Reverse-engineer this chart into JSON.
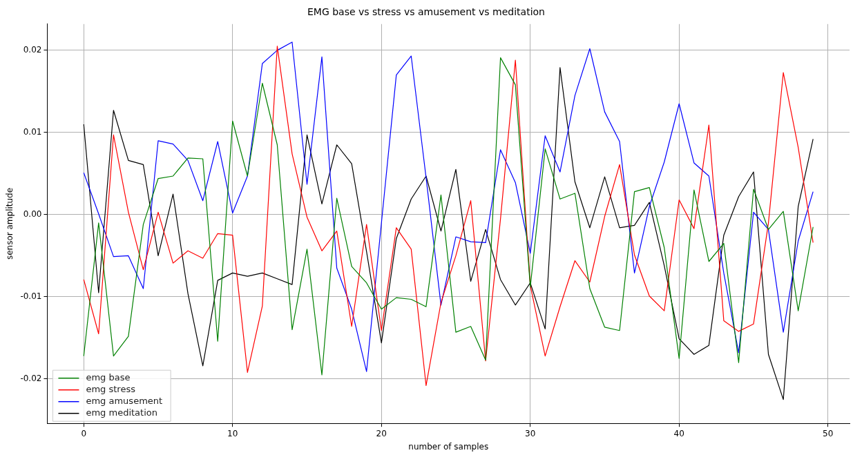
{
  "chart_data": {
    "type": "line",
    "title": "EMG base vs stress vs amusement vs meditation",
    "xlabel": "number of samples",
    "ylabel": "sensor amplitude",
    "x": [
      0,
      1,
      2,
      3,
      4,
      5,
      6,
      7,
      8,
      9,
      10,
      11,
      12,
      13,
      14,
      15,
      16,
      17,
      18,
      19,
      20,
      21,
      22,
      23,
      24,
      25,
      26,
      27,
      28,
      29,
      30,
      31,
      32,
      33,
      34,
      35,
      36,
      37,
      38,
      39,
      40,
      41,
      42,
      43,
      44,
      45,
      46,
      47,
      48,
      49
    ],
    "series": [
      {
        "name": "emg base",
        "color": "#008000",
        "values": [
          -0.0172,
          -0.001,
          -0.0172,
          -0.0148,
          -0.0012,
          0.0044,
          0.0047,
          0.0069,
          0.0068,
          -0.0154,
          0.0114,
          0.0047,
          0.016,
          0.0085,
          -0.014,
          -0.0042,
          -0.0195,
          0.002,
          -0.0063,
          -0.0083,
          -0.0115,
          -0.0101,
          -0.0103,
          -0.0112,
          0.0024,
          -0.0143,
          -0.0136,
          -0.0177,
          0.0191,
          0.0158,
          -0.0088,
          0.008,
          0.0019,
          0.0026,
          -0.009,
          -0.0137,
          -0.0141,
          0.0028,
          0.0033,
          -0.004,
          -0.0175,
          0.003,
          -0.0057,
          -0.0035,
          -0.018,
          0.0031,
          -0.0018,
          0.0004,
          -0.0117,
          -0.0015
        ]
      },
      {
        "name": "emg stress",
        "color": "#ff0000",
        "values": [
          -0.0079,
          -0.0145,
          0.0097,
          0.0003,
          -0.0067,
          0.0003,
          -0.0059,
          -0.0044,
          -0.0053,
          -0.0023,
          -0.0025,
          -0.0192,
          -0.0111,
          0.0205,
          0.0074,
          -0.0003,
          -0.0044,
          -0.002,
          -0.0136,
          -0.0012,
          -0.0141,
          -0.0016,
          -0.0042,
          -0.0208,
          -0.0107,
          -0.005,
          0.0017,
          -0.0178,
          -0.0005,
          0.0188,
          -0.0086,
          -0.0172,
          -0.0112,
          -0.0056,
          -0.0082,
          -0.0002,
          0.0061,
          -0.0049,
          -0.0099,
          -0.0117,
          0.0018,
          -0.0017,
          0.0109,
          -0.0129,
          -0.0142,
          -0.0133,
          -0.001,
          0.0173,
          0.0082,
          -0.0034
        ]
      },
      {
        "name": "emg amusement",
        "color": "#0000ff",
        "values": [
          0.0051,
          0.0001,
          -0.0051,
          -0.005,
          -0.009,
          0.009,
          0.0086,
          0.0066,
          0.0017,
          0.0089,
          0.0002,
          0.0047,
          0.0184,
          0.02,
          0.021,
          0.0037,
          0.0192,
          -0.0065,
          -0.0115,
          -0.0191,
          -0.001,
          0.017,
          0.0193,
          0.0045,
          -0.011,
          -0.0027,
          -0.0033,
          -0.0034,
          0.0079,
          0.0039,
          -0.0047,
          0.0096,
          0.0052,
          0.0145,
          0.0202,
          0.0125,
          0.0089,
          -0.0071,
          0.001,
          0.0064,
          0.0135,
          0.0063,
          0.0047,
          -0.0071,
          -0.0168,
          0.0003,
          -0.0018,
          -0.0143,
          -0.0032,
          0.0028
        ]
      },
      {
        "name": "emg meditation",
        "color": "#000000",
        "values": [
          0.011,
          -0.0095,
          0.0127,
          0.0066,
          0.0061,
          -0.005,
          0.0025,
          -0.0096,
          -0.0184,
          -0.008,
          -0.0071,
          -0.0075,
          -0.0071,
          -0.0078,
          -0.0085,
          0.0097,
          0.0013,
          0.0085,
          0.0062,
          -0.0045,
          -0.0156,
          -0.0029,
          0.0019,
          0.0047,
          -0.002,
          0.0055,
          -0.0081,
          -0.0018,
          -0.0079,
          -0.011,
          -0.0083,
          -0.0139,
          0.0179,
          0.004,
          -0.0016,
          0.0046,
          -0.0016,
          -0.0013,
          0.0015,
          -0.0062,
          -0.0151,
          -0.017,
          -0.0159,
          -0.0025,
          0.0022,
          0.0052,
          -0.017,
          -0.0225,
          0.001,
          0.0092
        ]
      }
    ],
    "xlim": [
      -2.45,
      51.45
    ],
    "xticks": [
      0,
      10,
      20,
      30,
      40,
      50
    ],
    "ylim": [
      -0.0254,
      0.0232
    ],
    "yticks": [
      -0.02,
      -0.01,
      {
        "value": 0,
        "label": "0.00"
      },
      0.01,
      0.02
    ],
    "grid": true,
    "legend": "bottom left",
    "marker": "none",
    "line_style": "solid"
  }
}
